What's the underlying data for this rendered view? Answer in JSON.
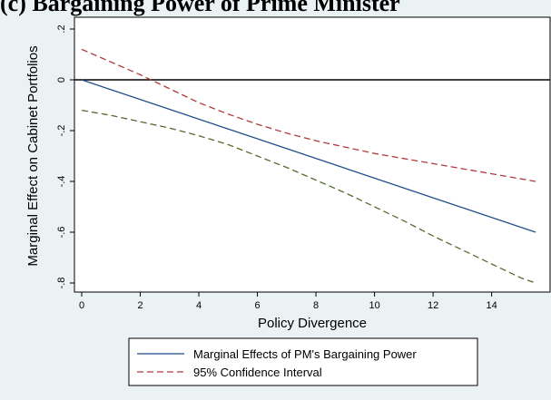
{
  "panel_title": "(c) Bargaining Power of Prime Minister",
  "colors": {
    "background": "#eaf2f3",
    "plot_area": "#ffffff",
    "marginal_effect_line": "#1f4e8c",
    "ci_upper_line": "#b03a3a",
    "ci_lower_line": "#556b2f",
    "zero_line": "#000000"
  },
  "chart_data": {
    "type": "line",
    "title": "",
    "xlabel": "Policy Divergence",
    "ylabel": "Marginal Effect on Cabinet Portfolios",
    "xlim": [
      0,
      15.5
    ],
    "ylim": [
      -0.8,
      0.2
    ],
    "x_ticks": [
      0,
      2,
      4,
      6,
      8,
      10,
      12,
      14
    ],
    "x_tick_labels": [
      "0",
      "2",
      "4",
      "6",
      "8",
      "10",
      "12",
      "14"
    ],
    "y_ticks": [
      0.2,
      0,
      -0.2,
      -0.4,
      -0.6,
      -0.8
    ],
    "y_tick_labels": [
      ".2",
      "0",
      "-.2",
      "-.4",
      "-.6",
      "-.8"
    ],
    "reference_line_y": 0,
    "grid": false,
    "legend_position": "bottom",
    "series": [
      {
        "name": "Marginal Effects of PM's Bargaining Power",
        "style": "solid",
        "x": [
          0,
          15.5
        ],
        "y": [
          0.0,
          -0.6
        ]
      },
      {
        "name": "95% Confidence Interval",
        "style": "dashed",
        "x": [
          0,
          1,
          2,
          3,
          4,
          5,
          6,
          7,
          8,
          9,
          10,
          11,
          12,
          13,
          14,
          15,
          15.5
        ],
        "y": [
          0.12,
          0.07,
          0.02,
          -0.035,
          -0.09,
          -0.135,
          -0.175,
          -0.21,
          -0.24,
          -0.265,
          -0.29,
          -0.31,
          -0.33,
          -0.35,
          -0.37,
          -0.39,
          -0.4
        ]
      },
      {
        "name": "",
        "style": "dashed",
        "x": [
          0,
          1,
          2,
          3,
          4,
          5,
          6,
          7,
          8,
          9,
          10,
          11,
          12,
          13,
          14,
          15,
          15.5
        ],
        "y": [
          -0.12,
          -0.14,
          -0.165,
          -0.19,
          -0.22,
          -0.255,
          -0.3,
          -0.345,
          -0.395,
          -0.445,
          -0.5,
          -0.555,
          -0.615,
          -0.67,
          -0.725,
          -0.78,
          -0.8
        ]
      }
    ],
    "legend": [
      {
        "label": "Marginal Effects of PM's Bargaining Power",
        "style": "solid"
      },
      {
        "label": "95% Confidence Interval",
        "style": "dashed"
      }
    ]
  }
}
